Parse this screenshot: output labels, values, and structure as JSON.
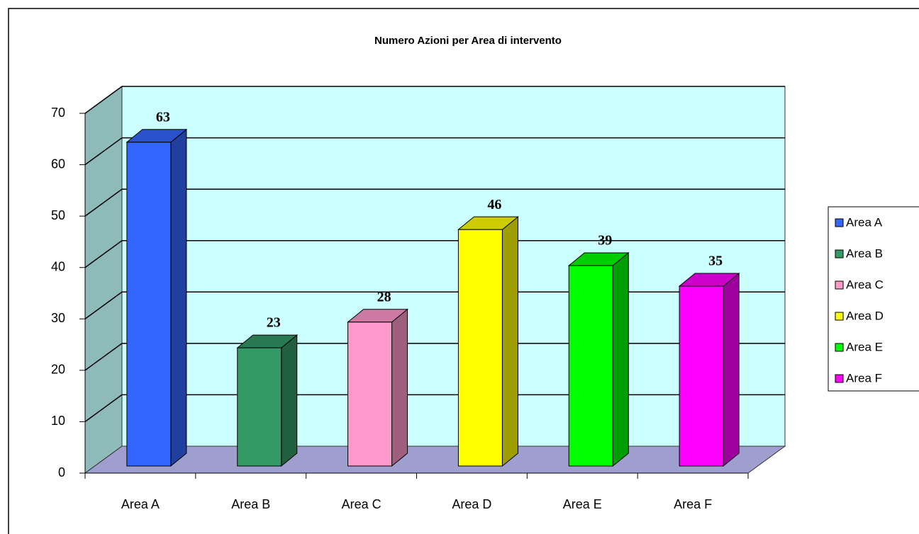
{
  "chart_data": {
    "type": "bar3d",
    "title": "Numero Azioni per Area di intervento",
    "categories": [
      "Area A",
      "Area B",
      "Area C",
      "Area D",
      "Area E",
      "Area F"
    ],
    "values": [
      63,
      23,
      28,
      46,
      39,
      35
    ],
    "colors": [
      "#3366ff",
      "#339966",
      "#ff99cc",
      "#ffff00",
      "#00ff00",
      "#ff00ff"
    ],
    "ylim": [
      0,
      70
    ],
    "yticks": [
      0,
      10,
      20,
      30,
      40,
      50,
      60,
      70
    ],
    "grid": true,
    "legend": "right"
  }
}
